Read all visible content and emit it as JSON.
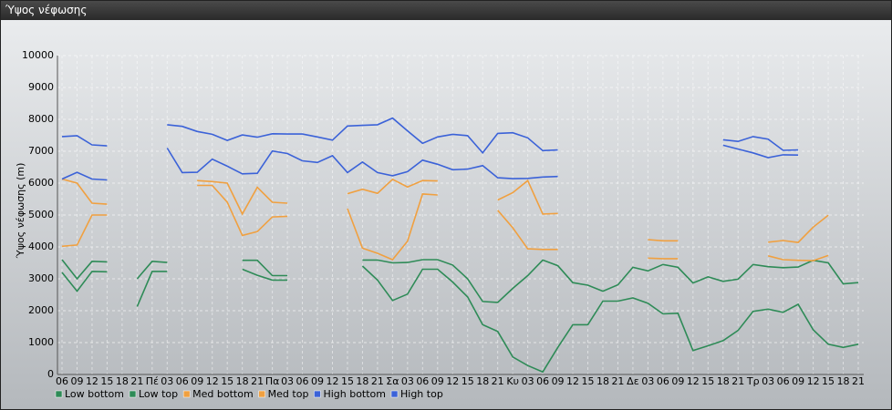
{
  "window_title": "Ύψος νέφωσης",
  "chart_data": {
    "type": "line",
    "y_label": "Ύψος νέφωσης (m)",
    "categories": [
      "06",
      "09",
      "12",
      "15",
      "18",
      "21",
      "Πέ",
      "03",
      "06",
      "09",
      "12",
      "15",
      "18",
      "21",
      "Πα",
      "03",
      "06",
      "09",
      "12",
      "15",
      "18",
      "21",
      "Σα",
      "03",
      "06",
      "09",
      "12",
      "15",
      "18",
      "21",
      "Κυ",
      "03",
      "06",
      "09",
      "12",
      "15",
      "18",
      "21",
      "Δε",
      "03",
      "06",
      "09",
      "12",
      "15",
      "18",
      "21",
      "Τρ",
      "03",
      "06",
      "09",
      "12",
      "15",
      "18",
      "21"
    ],
    "ylim": [
      0,
      10000
    ],
    "yticks": [
      0,
      1000,
      2000,
      3000,
      4000,
      5000,
      6000,
      7000,
      8000,
      9000,
      10000
    ],
    "grid": true,
    "legend": "bottom-left",
    "series": [
      {
        "name": "Low bottom",
        "color": "#2e8b57",
        "values": [
          3200,
          2610,
          3230,
          3220,
          null,
          2130,
          3230,
          3230,
          null,
          null,
          null,
          null,
          3300,
          3110,
          2960,
          2960,
          null,
          null,
          null,
          null,
          3400,
          2960,
          2320,
          2520,
          3300,
          3300,
          2900,
          2430,
          1560,
          1350,
          550,
          280,
          80,
          850,
          1560,
          1560,
          2300,
          2300,
          2400,
          2230,
          1900,
          1920,
          750,
          900,
          1060,
          1380,
          1980,
          2050,
          1950,
          2200,
          1400,
          950,
          850,
          950
        ]
      },
      {
        "name": "Low top",
        "color": "#2e8b57",
        "values": [
          3600,
          3000,
          3550,
          3530,
          null,
          3000,
          3550,
          3510,
          null,
          null,
          null,
          null,
          3580,
          3580,
          3100,
          3100,
          null,
          null,
          null,
          null,
          3590,
          3590,
          3500,
          3510,
          3600,
          3600,
          3430,
          3000,
          2290,
          2260,
          2700,
          3100,
          3590,
          3410,
          2880,
          2800,
          2610,
          2810,
          3360,
          3250,
          3450,
          3360,
          2870,
          3060,
          2920,
          2990,
          3450,
          3380,
          3350,
          3370,
          3580,
          3500,
          2840,
          2880
        ]
      },
      {
        "name": "Med bottom",
        "color": "#f0a040",
        "values": [
          4020,
          4060,
          5000,
          5000,
          null,
          null,
          null,
          null,
          null,
          5930,
          5930,
          5400,
          4360,
          4480,
          4940,
          4960,
          null,
          null,
          null,
          5200,
          3960,
          3800,
          3600,
          4180,
          5660,
          5630,
          null,
          null,
          null,
          5150,
          4600,
          3940,
          3920,
          3920,
          null,
          null,
          null,
          null,
          null,
          3650,
          3630,
          3630,
          null,
          null,
          null,
          null,
          null,
          3720,
          3600,
          3580,
          3570,
          3730,
          null,
          null
        ]
      },
      {
        "name": "Med top",
        "color": "#f0a040",
        "values": [
          6130,
          6000,
          5370,
          5340,
          null,
          null,
          null,
          null,
          null,
          6080,
          6050,
          6000,
          5030,
          5870,
          5400,
          5370,
          null,
          null,
          null,
          5670,
          5810,
          5680,
          6120,
          5880,
          6080,
          6070,
          null,
          null,
          null,
          5470,
          5700,
          6080,
          5030,
          5050,
          null,
          null,
          null,
          null,
          null,
          4230,
          4190,
          4190,
          null,
          null,
          null,
          null,
          null,
          4150,
          4200,
          4140,
          4620,
          4990,
          null,
          null
        ]
      },
      {
        "name": "High bottom",
        "color": "#3b62d8",
        "values": [
          6130,
          6340,
          6130,
          6100,
          null,
          null,
          null,
          7100,
          6330,
          6340,
          6750,
          6530,
          6290,
          6310,
          7010,
          6930,
          6700,
          6650,
          6860,
          6330,
          6660,
          6330,
          6230,
          6360,
          6720,
          6590,
          6420,
          6440,
          6550,
          6170,
          6140,
          6150,
          6190,
          6210,
          null,
          null,
          null,
          null,
          null,
          null,
          null,
          null,
          null,
          null,
          7190,
          7070,
          6950,
          6800,
          6890,
          6880,
          null,
          null,
          null,
          null
        ]
      },
      {
        "name": "High top",
        "color": "#3b62d8",
        "values": [
          7460,
          7490,
          7200,
          7170,
          null,
          null,
          null,
          7830,
          7780,
          7620,
          7530,
          7340,
          7510,
          7440,
          7550,
          7540,
          7540,
          7450,
          7350,
          7790,
          7810,
          7830,
          8040,
          7640,
          7250,
          7450,
          7530,
          7490,
          6950,
          7560,
          7580,
          7420,
          7020,
          7040,
          null,
          null,
          null,
          null,
          null,
          null,
          null,
          null,
          null,
          null,
          7360,
          7310,
          7460,
          7380,
          7030,
          7040,
          null,
          null,
          null,
          null
        ]
      }
    ]
  }
}
